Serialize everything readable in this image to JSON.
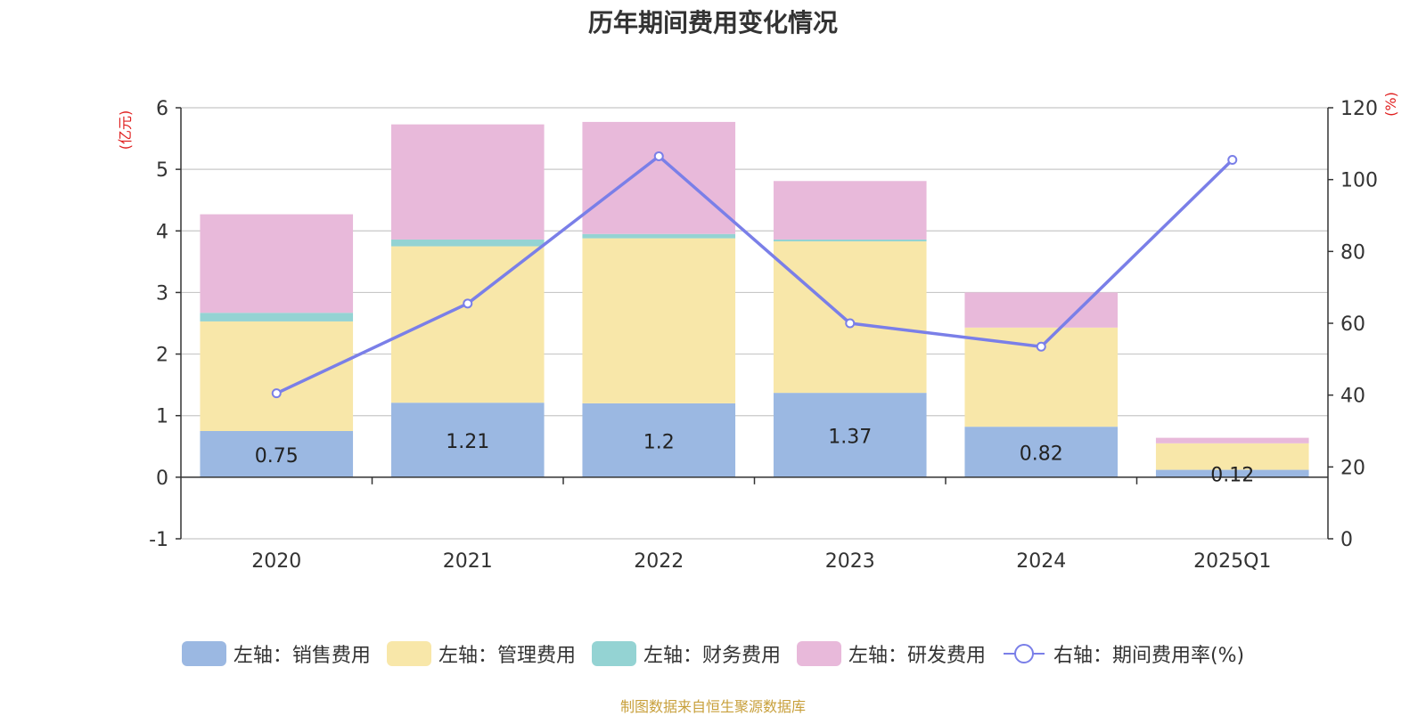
{
  "chart_data": {
    "type": "bar",
    "stacked": true,
    "title": "历年期间费用变化情况",
    "categories": [
      "2020",
      "2021",
      "2022",
      "2023",
      "2024",
      "2025Q1"
    ],
    "left_axis": {
      "label": "(亿元)",
      "range": [
        -1,
        6
      ],
      "ticks": [
        -1,
        0,
        1,
        2,
        3,
        4,
        5,
        6
      ]
    },
    "right_axis": {
      "label": "(%)",
      "range": [
        0,
        120
      ],
      "ticks": [
        0,
        20,
        40,
        60,
        80,
        100,
        120
      ]
    },
    "series": [
      {
        "name": "左轴：销售费用",
        "axis": "left",
        "type": "bar",
        "color": "#9bb8e2",
        "values": [
          0.75,
          1.21,
          1.2,
          1.37,
          0.82,
          0.12
        ],
        "data_labels": [
          "0.75",
          "1.21",
          "1.2",
          "1.37",
          "0.82",
          "0.12"
        ]
      },
      {
        "name": "左轴：管理费用",
        "axis": "left",
        "type": "bar",
        "color": "#f8e7a9",
        "values": [
          1.78,
          2.54,
          2.68,
          2.46,
          1.61,
          0.43
        ]
      },
      {
        "name": "左轴：财务费用",
        "axis": "left",
        "type": "bar",
        "color": "#94d3d3",
        "values": [
          0.14,
          0.11,
          0.07,
          0.03,
          0.0,
          0.0
        ]
      },
      {
        "name": "左轴：研发费用",
        "axis": "left",
        "type": "bar",
        "color": "#e8b9da",
        "values": [
          1.6,
          1.87,
          1.82,
          0.95,
          0.57,
          0.09
        ]
      },
      {
        "name": "右轴：期间费用率(%)",
        "axis": "right",
        "type": "line",
        "color": "#7a7fe8",
        "values": [
          40.5,
          65.5,
          106.5,
          60,
          53.5,
          105.5
        ]
      }
    ],
    "grid": true,
    "legend_position": "bottom"
  },
  "source_note": "制图数据来自恒生聚源数据库"
}
